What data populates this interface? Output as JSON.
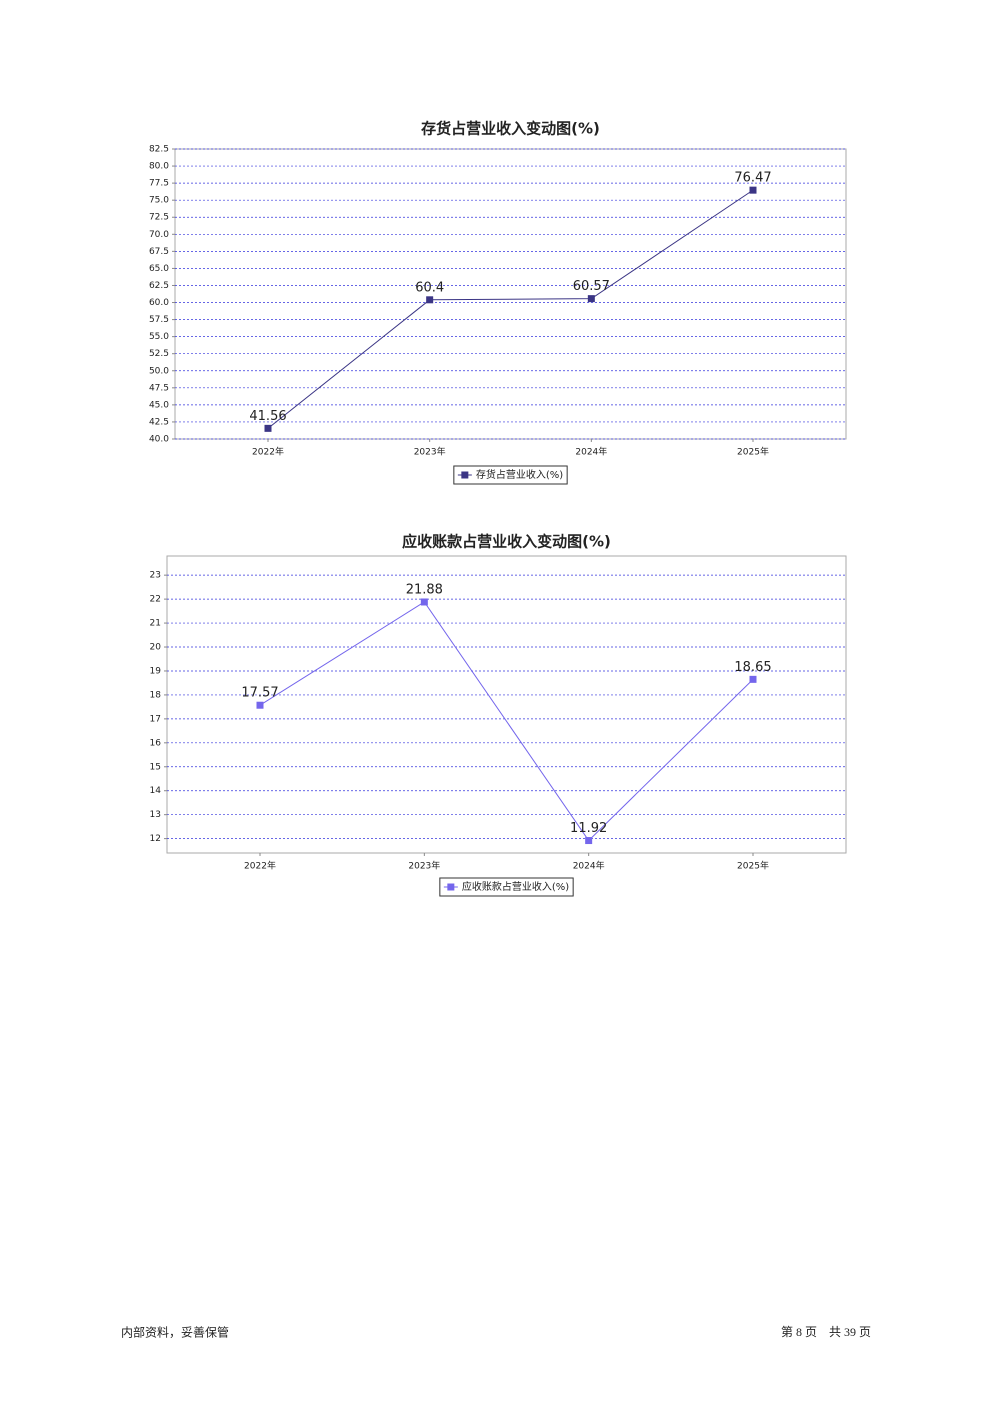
{
  "chart_data": [
    {
      "type": "line",
      "title": "存货占营业收入变动图(%)",
      "categories": [
        "2022年",
        "2023年",
        "2024年",
        "2025年"
      ],
      "series": [
        {
          "name": "存货占营业收入(%)",
          "color": "#3b3585",
          "values": [
            41.56,
            60.4,
            60.57,
            76.47
          ]
        }
      ],
      "ylim": [
        40,
        82.5
      ],
      "yticks": [
        {
          "value": 40,
          "label": "40.0"
        },
        {
          "value": 42.5,
          "label": "42.5"
        },
        {
          "value": 45,
          "label": "45.0"
        },
        {
          "value": 47.5,
          "label": "47.5"
        },
        {
          "value": 50,
          "label": "50.0"
        },
        {
          "value": 52.5,
          "label": "52.5"
        },
        {
          "value": 55,
          "label": "55.0"
        },
        {
          "value": 57.5,
          "label": "57.5"
        },
        {
          "value": 60,
          "label": "60.0"
        },
        {
          "value": 62.5,
          "label": "62.5"
        },
        {
          "value": 65,
          "label": "65.0"
        },
        {
          "value": 67.5,
          "label": "67.5"
        },
        {
          "value": 70,
          "label": "70.0"
        },
        {
          "value": 72.5,
          "label": "72.5"
        },
        {
          "value": 75,
          "label": "75.0"
        },
        {
          "value": 77.5,
          "label": "77.5"
        },
        {
          "value": 80,
          "label": "80.0"
        },
        {
          "value": 82.5,
          "label": "82.5"
        }
      ],
      "grid": true,
      "legend": "bottom"
    },
    {
      "type": "line",
      "title": "应收账款占营业收入变动图(%)",
      "categories": [
        "2022年",
        "2023年",
        "2024年",
        "2025年"
      ],
      "series": [
        {
          "name": "应收账款占营业收入(%)",
          "color": "#7466ec",
          "values": [
            17.57,
            21.88,
            11.92,
            18.65
          ]
        }
      ],
      "ylim": [
        11.4,
        23.8
      ],
      "yticks": [
        12,
        13,
        14,
        15,
        16,
        17,
        18,
        19,
        20,
        21,
        22,
        23
      ],
      "grid": true,
      "legend": "bottom"
    }
  ],
  "footer": {
    "left": "内部资料，妥善保管",
    "right": "第 8 页　共 39 页"
  }
}
